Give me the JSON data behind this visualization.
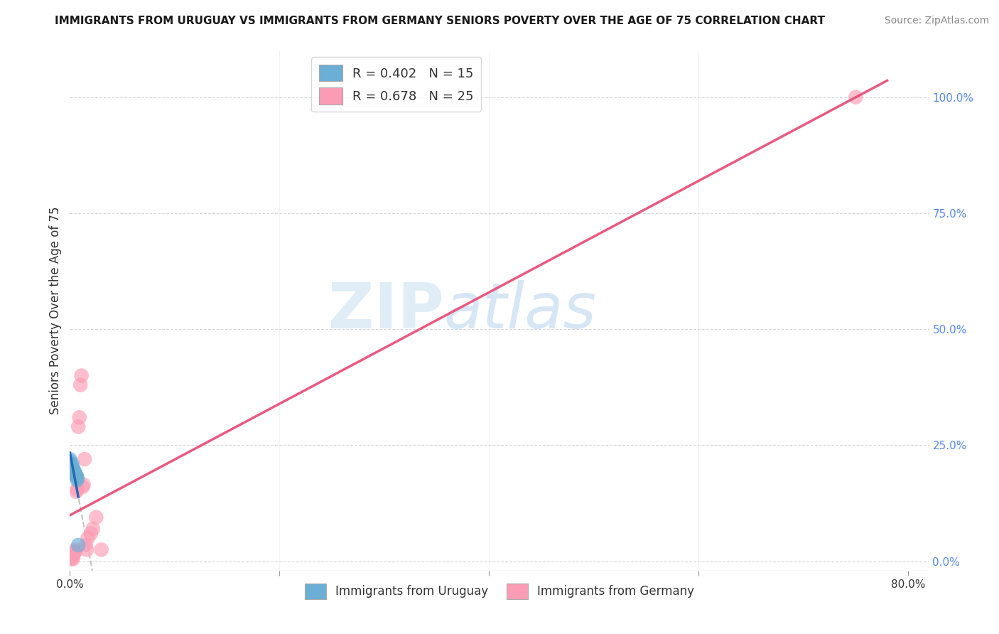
{
  "title": "IMMIGRANTS FROM URUGUAY VS IMMIGRANTS FROM GERMANY SENIORS POVERTY OVER THE AGE OF 75 CORRELATION CHART",
  "source": "Source: ZipAtlas.com",
  "ylabel": "Seniors Poverty Over the Age of 75",
  "xlim": [
    0,
    0.82
  ],
  "ylim": [
    -0.02,
    1.1
  ],
  "yticks_right": [
    0.0,
    0.25,
    0.5,
    0.75,
    1.0
  ],
  "legend_entries": [
    {
      "R": 0.402,
      "N": 15
    },
    {
      "R": 0.678,
      "N": 25
    }
  ],
  "uruguay_points": [
    [
      0.0,
      0.22
    ],
    [
      0.0,
      0.215
    ],
    [
      0.002,
      0.21
    ],
    [
      0.002,
      0.205
    ],
    [
      0.003,
      0.2
    ],
    [
      0.003,
      0.198
    ],
    [
      0.004,
      0.195
    ],
    [
      0.004,
      0.193
    ],
    [
      0.005,
      0.19
    ],
    [
      0.005,
      0.188
    ],
    [
      0.006,
      0.185
    ],
    [
      0.006,
      0.183
    ],
    [
      0.007,
      0.18
    ],
    [
      0.007,
      0.175
    ],
    [
      0.008,
      0.035
    ]
  ],
  "germany_points": [
    [
      0.0,
      0.01
    ],
    [
      0.001,
      0.005
    ],
    [
      0.002,
      0.008
    ],
    [
      0.003,
      0.005
    ],
    [
      0.003,
      0.012
    ],
    [
      0.004,
      0.018
    ],
    [
      0.005,
      0.025
    ],
    [
      0.005,
      0.02
    ],
    [
      0.006,
      0.15
    ],
    [
      0.007,
      0.155
    ],
    [
      0.008,
      0.29
    ],
    [
      0.009,
      0.31
    ],
    [
      0.01,
      0.38
    ],
    [
      0.011,
      0.4
    ],
    [
      0.012,
      0.16
    ],
    [
      0.013,
      0.165
    ],
    [
      0.014,
      0.22
    ],
    [
      0.015,
      0.035
    ],
    [
      0.016,
      0.025
    ],
    [
      0.017,
      0.05
    ],
    [
      0.02,
      0.06
    ],
    [
      0.022,
      0.07
    ],
    [
      0.025,
      0.095
    ],
    [
      0.03,
      0.025
    ],
    [
      0.75,
      1.0
    ]
  ],
  "uruguay_color": "#6baed6",
  "germany_color": "#fc9cb4",
  "uruguay_line_color": "#2166ac",
  "germany_line_color": "#e8507a",
  "watermark_zip": "ZIP",
  "watermark_atlas": "atlas",
  "background_color": "#ffffff",
  "grid_color": "#cccccc",
  "title_fontsize": 11,
  "source_fontsize": 10
}
